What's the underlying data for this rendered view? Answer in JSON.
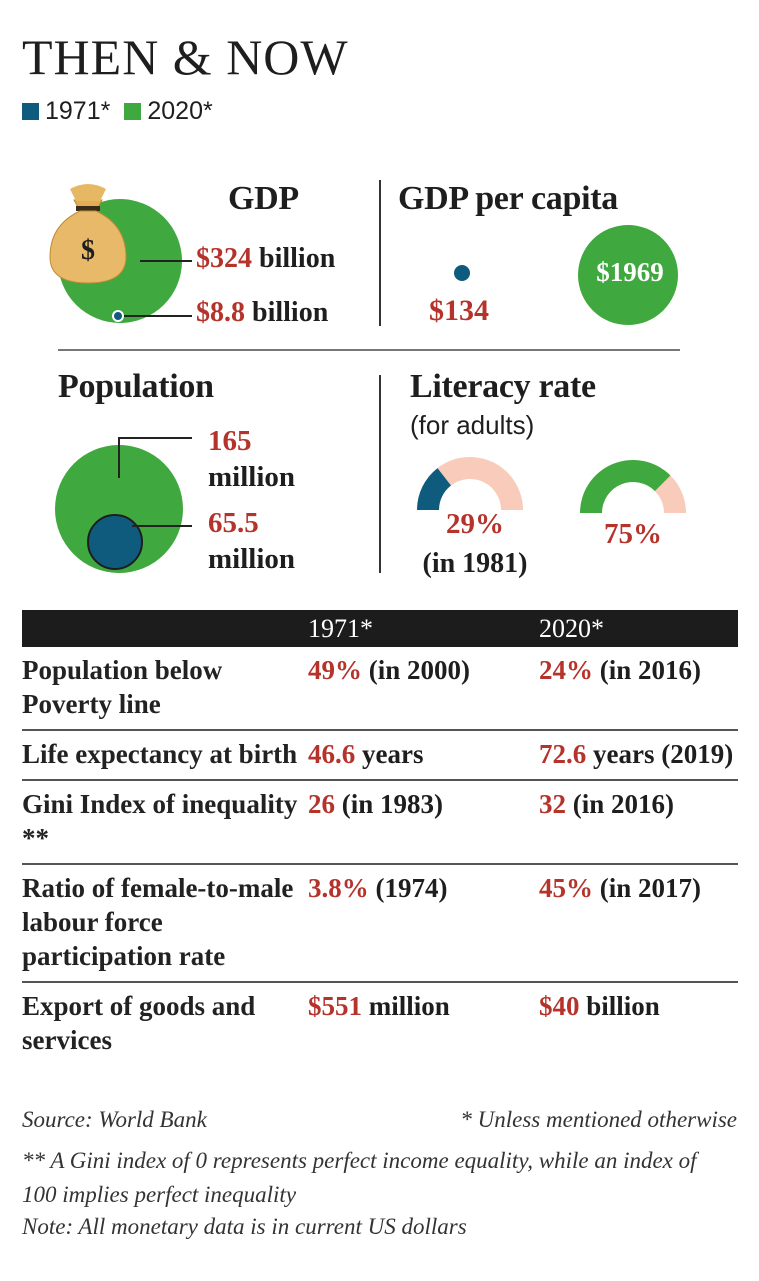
{
  "title": "THEN & NOW",
  "legend": [
    {
      "label": "1971*",
      "color": "#0f5b7e"
    },
    {
      "label": "2020*",
      "color": "#3fa83e"
    }
  ],
  "colors": {
    "y1971": "#0f5b7e",
    "y2020": "#3fa83e",
    "highlight": "#b5332b",
    "light_pink": "#f8cbbb"
  },
  "chart_data": [
    {
      "type": "bubble",
      "title": "GDP",
      "unit": "billion",
      "series": [
        {
          "name": "2020*",
          "value": 324,
          "label_value": "$324",
          "label_unit": "billion"
        },
        {
          "name": "1971*",
          "value": 8.8,
          "label_value": "$8.8",
          "label_unit": "billion"
        }
      ],
      "icon": "money-bag-icon"
    },
    {
      "type": "bubble",
      "title": "GDP per capita",
      "series": [
        {
          "name": "1971*",
          "value": 134,
          "label": "$134"
        },
        {
          "name": "2020*",
          "value": 1969,
          "label": "$1969"
        }
      ]
    },
    {
      "type": "bubble",
      "title": "Population",
      "series": [
        {
          "name": "2020*",
          "value": 165,
          "label_value": "165",
          "label_unit": "million"
        },
        {
          "name": "1971*",
          "value": 65.5,
          "label_value": "65.5",
          "label_unit": "million"
        }
      ]
    },
    {
      "type": "semi-donut",
      "title": "Literacy rate",
      "subtitle": "(for adults)",
      "series": [
        {
          "name": "1971*",
          "value": 29,
          "label": "29%",
          "note": "(in 1981)"
        },
        {
          "name": "2020*",
          "value": 75,
          "label": "75%"
        }
      ]
    }
  ],
  "table": {
    "headers": [
      "",
      "1971*",
      "2020*"
    ],
    "rows": [
      {
        "label": "Population below Poverty line",
        "v1": "49%",
        "n1": " (in 2000)",
        "v2": "24%",
        "n2": " (in 2016)"
      },
      {
        "label": "Life expectancy at birth",
        "v1": "46.6",
        "n1": " years",
        "v2": "72.6",
        "n2": " years (2019)"
      },
      {
        "label": "Gini Index of inequality **",
        "v1": "26",
        "n1": " (in 1983)",
        "v2": "32",
        "n2": " (in 2016)"
      },
      {
        "label": "Ratio of female-to-male labour force participation rate",
        "v1": "3.8%",
        "n1": " (1974)",
        "v2": "45%",
        "n2": " (in 2017)"
      },
      {
        "label": "Export of goods and services",
        "v1": "$551",
        "n1": " million",
        "v2": "$40",
        "n2": " billion"
      }
    ]
  },
  "footer": {
    "source": "Source: World Bank",
    "unless": "* Unless mentioned otherwise",
    "gini_note": "** A Gini index of 0 represents perfect income equality, while an index of 100 implies perfect inequality",
    "note": "Note: All monetary data is in current US dollars"
  }
}
